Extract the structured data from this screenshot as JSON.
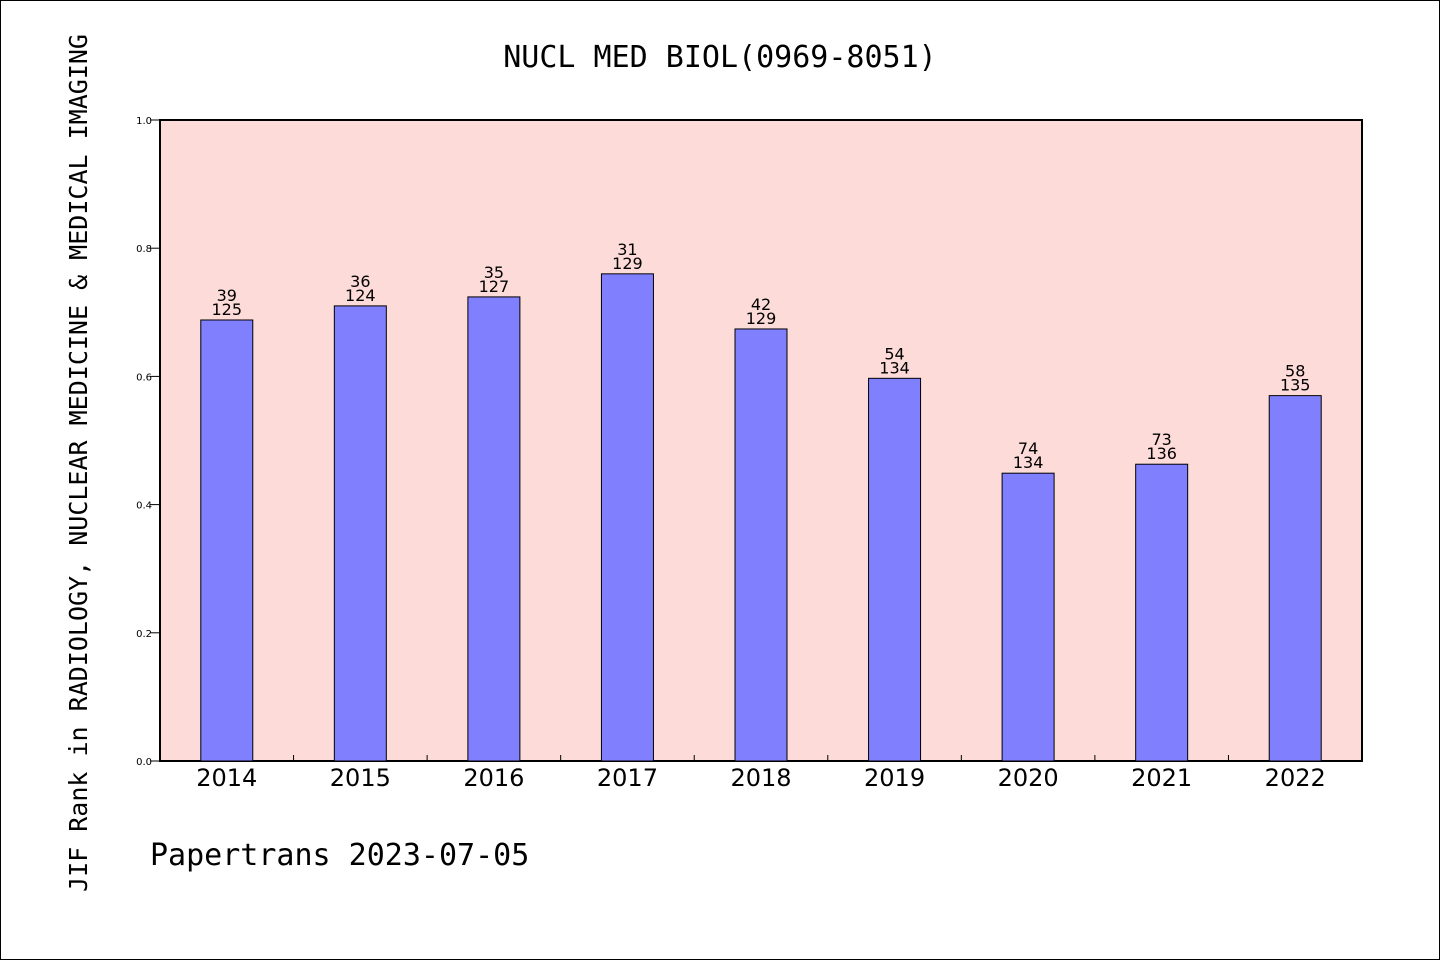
{
  "chart_data": {
    "type": "bar",
    "title": "NUCL MED BIOL(0969-8051)",
    "ylabel": "JIF Rank in RADIOLOGY, NUCLEAR MEDICINE & MEDICAL IMAGING",
    "xlabel": "",
    "categories": [
      "2014",
      "2015",
      "2016",
      "2017",
      "2018",
      "2019",
      "2020",
      "2021",
      "2022"
    ],
    "values": [
      0.688,
      0.71,
      0.724,
      0.76,
      0.674,
      0.597,
      0.449,
      0.463,
      0.57
    ],
    "labels_top": [
      "39",
      "36",
      "35",
      "31",
      "42",
      "54",
      "74",
      "73",
      "58"
    ],
    "labels_bottom": [
      "125",
      "124",
      "127",
      "129",
      "129",
      "134",
      "134",
      "136",
      "135"
    ],
    "ylim": [
      0,
      1.0
    ],
    "yticks": [
      "0.0",
      "0.2",
      "0.4",
      "0.6",
      "0.8",
      "1.0"
    ],
    "grid": false,
    "colors": {
      "plot_bg": "#fddbd8",
      "bar_fill": "#8080ff",
      "bar_stroke": "#000000"
    }
  },
  "footer": "Papertrans 2023-07-05"
}
